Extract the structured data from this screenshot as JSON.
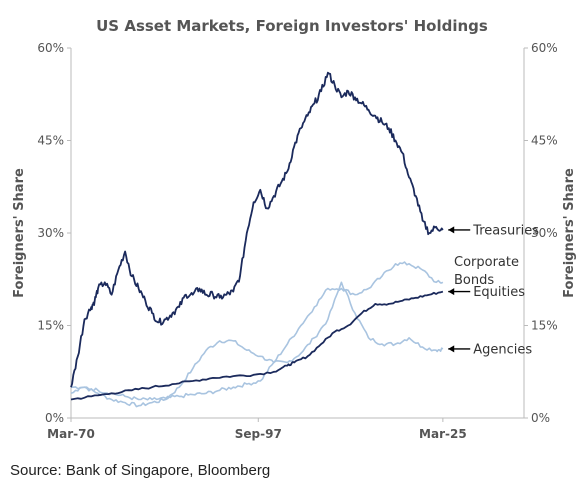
{
  "chart_data": {
    "type": "line",
    "title": "US Asset Markets, Foreign Investors' Holdings",
    "ylabel_left": "Foreigners' Share",
    "ylabel_right": "Foreigners' Share",
    "x_ticks": [
      "Mar-70",
      "Sep-97",
      "Mar-25"
    ],
    "y_ticks": [
      "0%",
      "15%",
      "30%",
      "45%",
      "60%"
    ],
    "xlim": [
      1970,
      2037
    ],
    "ylim": [
      0,
      60
    ],
    "grid": false,
    "colors": {
      "dark": "#1b2a5c",
      "light": "#a9c4e0",
      "arrow": "#000000",
      "axis": "#bbbbbb"
    },
    "annotations": [
      {
        "text": "Treasuries",
        "series": "Treasuries",
        "at_x": 2025.2,
        "at_y": 30.5
      },
      {
        "text": "Corporate",
        "series": "Corporate Bonds",
        "at_x": 2025.2,
        "at_y": 21.5,
        "line": 1
      },
      {
        "text": "Bonds",
        "series": "Corporate Bonds",
        "at_x": 2025.2,
        "at_y": 21.5,
        "line": 2
      },
      {
        "text": "Equities",
        "series": "Equities",
        "at_x": 2025.2,
        "at_y": 20.5
      },
      {
        "text": "Agencies",
        "series": "Agencies",
        "at_x": 2025.2,
        "at_y": 11.2
      }
    ],
    "series": [
      {
        "name": "Treasuries",
        "color": "dark",
        "x": [
          1970,
          1971,
          1972,
          1973,
          1973.5,
          1974,
          1975,
          1976,
          1977,
          1978,
          1979,
          1980,
          1981,
          1982,
          1983,
          1984,
          1985,
          1986,
          1987,
          1988,
          1989,
          1990,
          1991,
          1992,
          1993,
          1994,
          1995,
          1996,
          1997,
          1998,
          1999,
          2000,
          2001,
          2002,
          2003,
          2004,
          2005,
          2006,
          2007,
          2008,
          2009,
          2010,
          2011,
          2012,
          2013,
          2014,
          2015,
          2016,
          2017,
          2018,
          2019,
          2020,
          2021,
          2022,
          2023,
          2024,
          2025
        ],
        "values": [
          5,
          10,
          16,
          18,
          19,
          21,
          22,
          20,
          24,
          27,
          23,
          21,
          19,
          17,
          15.5,
          16,
          17,
          18,
          20,
          20,
          21,
          20,
          20,
          19.5,
          20,
          20.5,
          23,
          30,
          35,
          37,
          34,
          36,
          38,
          40,
          44,
          47,
          49,
          51,
          53,
          56,
          54,
          52,
          53,
          52,
          51,
          50,
          49,
          48,
          47,
          45,
          43,
          39,
          36,
          32,
          30,
          31,
          30.5
        ]
      },
      {
        "name": "Corporate Bonds",
        "color": "light",
        "x": [
          1970,
          1972,
          1974,
          1976,
          1978,
          1980,
          1982,
          1984,
          1986,
          1988,
          1990,
          1992,
          1994,
          1996,
          1998,
          2000,
          2002,
          2004,
          2006,
          2008,
          2010,
          2012,
          2014,
          2016,
          2018,
          2020,
          2022,
          2024,
          2025
        ],
        "values": [
          4,
          5,
          4.5,
          4,
          3.5,
          3,
          3,
          3.2,
          3.5,
          3.8,
          4,
          4.5,
          5,
          5.5,
          6,
          9,
          12,
          15,
          18,
          21,
          21,
          20,
          21,
          23,
          25,
          25,
          24,
          22,
          22
        ]
      },
      {
        "name": "Equities",
        "color": "dark",
        "x": [
          1970,
          1973,
          1976,
          1979,
          1982,
          1985,
          1988,
          1991,
          1994,
          1997,
          2000,
          2002,
          2003,
          2005,
          2007,
          2009,
          2011,
          2013,
          2015,
          2017,
          2019,
          2021,
          2023,
          2025
        ],
        "values": [
          3,
          3.5,
          4,
          4.5,
          5,
          5.5,
          6,
          6.5,
          6.8,
          7,
          7.5,
          8.5,
          9,
          10,
          12,
          14,
          15,
          17,
          18.5,
          18.5,
          19,
          19.5,
          20,
          20.5
        ]
      },
      {
        "name": "Agencies",
        "color": "light",
        "x": [
          1970,
          1972,
          1974,
          1976,
          1978,
          1980,
          1982,
          1984,
          1986,
          1988,
          1990,
          1992,
          1994,
          1996,
          1998,
          2000,
          2002,
          2004,
          2006,
          2008,
          2010,
          2012,
          2014,
          2016,
          2018,
          2020,
          2022,
          2024,
          2025
        ],
        "values": [
          5,
          5,
          4,
          3,
          2.5,
          2,
          2.5,
          3,
          5,
          8,
          11,
          12.5,
          12.5,
          11,
          10,
          9,
          9,
          10.5,
          13,
          16,
          22,
          17,
          13,
          12,
          12,
          13,
          11.5,
          11,
          11.2
        ]
      }
    ]
  },
  "source": "Source: Bank of Singapore, Bloomberg"
}
